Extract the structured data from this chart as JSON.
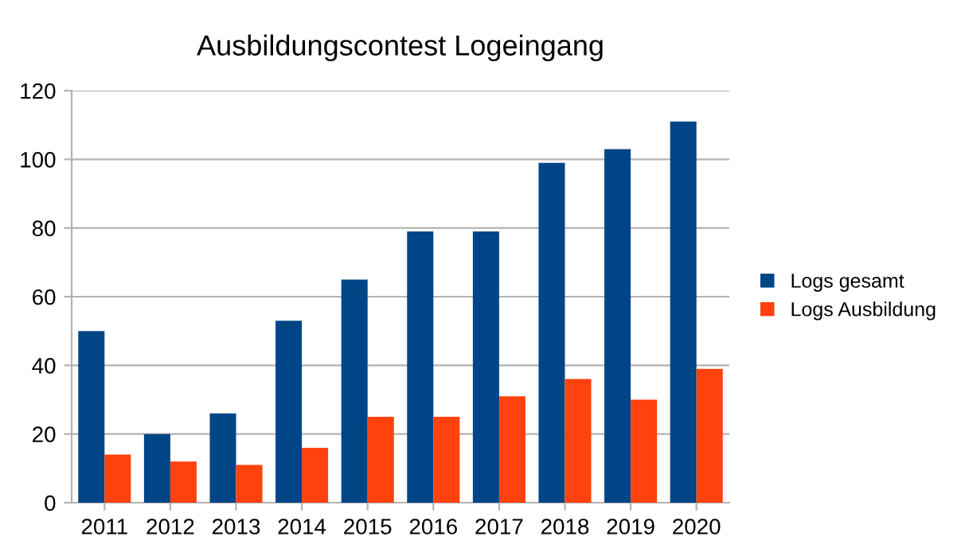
{
  "chart_data": {
    "type": "bar",
    "title": "Ausbildungscontest Logeingang",
    "categories": [
      "2011",
      "2012",
      "2013",
      "2014",
      "2015",
      "2016",
      "2017",
      "2018",
      "2019",
      "2020"
    ],
    "series": [
      {
        "name": "Logs gesamt",
        "color": "#004586",
        "values": [
          50,
          20,
          26,
          53,
          65,
          79,
          79,
          99,
          103,
          111
        ]
      },
      {
        "name": "Logs Ausbildung",
        "color": "#ff420e",
        "values": [
          14,
          12,
          11,
          16,
          25,
          25,
          31,
          36,
          30,
          39
        ]
      }
    ],
    "ylim": [
      0,
      120
    ],
    "yticks": [
      0,
      20,
      40,
      60,
      80,
      100,
      120
    ],
    "grid": "y",
    "legend": "right"
  }
}
